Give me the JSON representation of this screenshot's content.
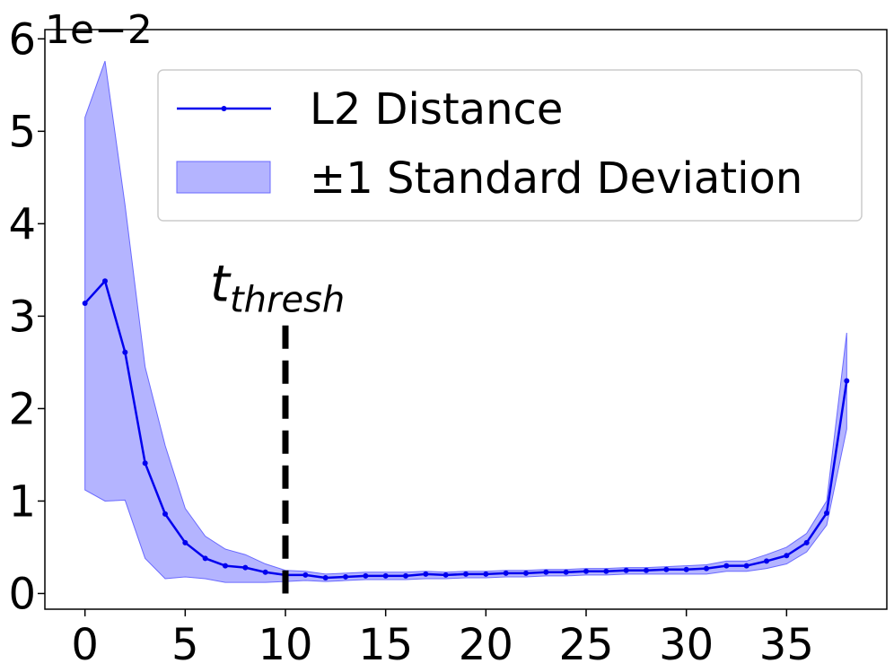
{
  "chart_data": {
    "type": "line",
    "title": "",
    "xlabel": "",
    "ylabel": "",
    "y_offset_text": "1e−2",
    "xlim": [
      -2,
      40
    ],
    "ylim": [
      -0.0017,
      0.061
    ],
    "xticks": [
      0,
      5,
      10,
      15,
      20,
      25,
      30,
      35
    ],
    "xtick_labels": [
      "0",
      "5",
      "10",
      "15",
      "20",
      "25",
      "30",
      "35"
    ],
    "yticks": [
      0,
      0.01,
      0.02,
      0.03,
      0.04,
      0.05,
      0.06
    ],
    "ytick_labels": [
      "0",
      "1",
      "2",
      "3",
      "4",
      "5",
      "6"
    ],
    "grid": false,
    "legend_position": "upper-right",
    "colors": {
      "line": "#0000ee",
      "band": "#7777ff",
      "threshold": "#000000"
    },
    "x": [
      0,
      1,
      2,
      3,
      4,
      5,
      6,
      7,
      8,
      9,
      10,
      11,
      12,
      13,
      14,
      15,
      16,
      17,
      18,
      19,
      20,
      21,
      22,
      23,
      24,
      25,
      26,
      27,
      28,
      29,
      30,
      31,
      32,
      33,
      34,
      35,
      36,
      37,
      38
    ],
    "series": [
      {
        "name": "L2 Distance",
        "values": [
          0.0314,
          0.0338,
          0.0261,
          0.0141,
          0.0086,
          0.0055,
          0.0038,
          0.003,
          0.0028,
          0.0023,
          0.002,
          0.002,
          0.0017,
          0.0018,
          0.0019,
          0.0019,
          0.0019,
          0.0021,
          0.002,
          0.0021,
          0.0021,
          0.0022,
          0.0022,
          0.0023,
          0.0023,
          0.0024,
          0.0024,
          0.0025,
          0.0025,
          0.0026,
          0.0026,
          0.0027,
          0.003,
          0.003,
          0.0035,
          0.0041,
          0.0055,
          0.0087,
          0.023
        ]
      }
    ],
    "band": {
      "name": "±1 Standard Deviation",
      "upper": [
        0.0515,
        0.0576,
        0.042,
        0.0245,
        0.016,
        0.0092,
        0.0062,
        0.0048,
        0.0042,
        0.0032,
        0.0025,
        0.0024,
        0.0021,
        0.0022,
        0.0023,
        0.0023,
        0.0023,
        0.0024,
        0.0023,
        0.0024,
        0.0024,
        0.0025,
        0.0025,
        0.0026,
        0.0026,
        0.0027,
        0.0027,
        0.0028,
        0.0028,
        0.0029,
        0.003,
        0.0031,
        0.0035,
        0.0035,
        0.0042,
        0.005,
        0.0065,
        0.01,
        0.0282
      ],
      "lower": [
        0.0112,
        0.01,
        0.0101,
        0.0038,
        0.0016,
        0.0018,
        0.0016,
        0.0012,
        0.0012,
        0.0012,
        0.0013,
        0.0014,
        0.0013,
        0.0014,
        0.0015,
        0.0015,
        0.0015,
        0.0016,
        0.0016,
        0.0017,
        0.0017,
        0.0018,
        0.0018,
        0.0019,
        0.0019,
        0.002,
        0.002,
        0.0021,
        0.0021,
        0.0021,
        0.0021,
        0.0021,
        0.0024,
        0.0024,
        0.0027,
        0.0032,
        0.0045,
        0.0074,
        0.0178
      ]
    },
    "threshold": {
      "label": "t",
      "subscript": "thresh",
      "x": 10,
      "y_range": [
        0,
        0.029
      ]
    }
  }
}
